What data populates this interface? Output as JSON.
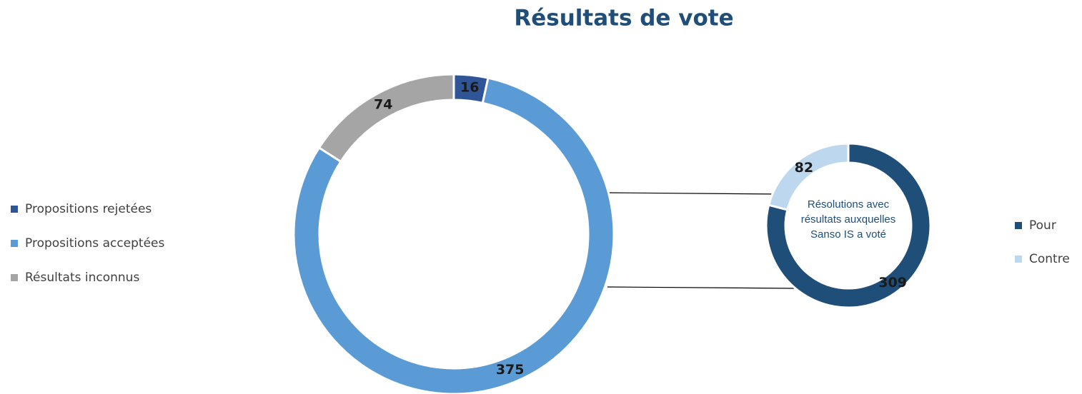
{
  "chart_data": [
    {
      "type": "donut",
      "title": "Résultats de vote",
      "categories": [
        "Propositions rejetées",
        "Propositions acceptées",
        "Résultats inconnus"
      ],
      "values": [
        16,
        375,
        74
      ],
      "colors": [
        "#2f5597",
        "#5b9bd5",
        "#a5a5a5"
      ]
    },
    {
      "type": "donut",
      "center_label": "Résolutions avec résultats auxquelles Sanso IS a voté",
      "categories": [
        "Pour",
        "Contre"
      ],
      "values": [
        309,
        82
      ],
      "colors": [
        "#1f4e79",
        "#bdd7ee"
      ]
    }
  ]
}
